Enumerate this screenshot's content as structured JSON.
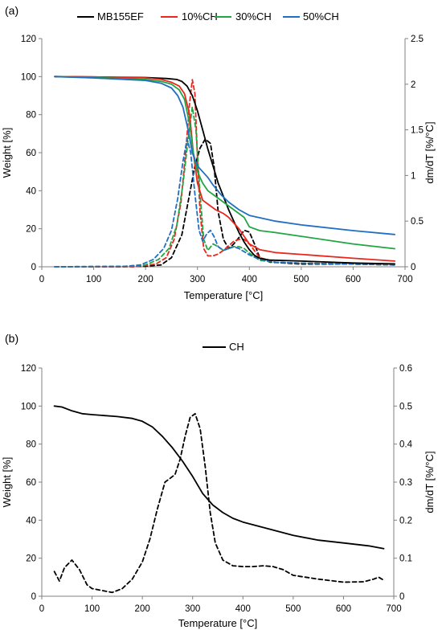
{
  "chart_data": [
    {
      "type": "line",
      "panel_label": "(a)",
      "xlabel": "Temperature [°C]",
      "ylabel": "Weight [%]",
      "y2label": "dm/dT [%/°C]",
      "xlim": [
        0,
        700
      ],
      "ylim": [
        0,
        120
      ],
      "y2lim": [
        0,
        2.5
      ],
      "xticks": [
        0,
        100,
        200,
        300,
        400,
        500,
        600,
        700
      ],
      "yticks": [
        0,
        20,
        40,
        60,
        80,
        100,
        120
      ],
      "y2ticks": [
        0,
        0.5,
        1,
        1.5,
        2,
        2.5
      ],
      "y2tick_labels": [
        "0",
        "0.5",
        "1",
        "1.5",
        "2",
        "2.5"
      ],
      "grid": false,
      "legend_position": "top",
      "series": [
        {
          "name": "MB155EF",
          "color": "#000000",
          "axis": "left",
          "style": "solid",
          "x": [
            25,
            100,
            200,
            240,
            260,
            270,
            280,
            290,
            300,
            310,
            320,
            330,
            340,
            350,
            360,
            370,
            380,
            390,
            400,
            410,
            420,
            440,
            500,
            600,
            680
          ],
          "y": [
            100,
            99.8,
            99.5,
            99,
            98.5,
            97.5,
            95,
            90,
            82,
            72,
            62,
            53,
            44,
            37,
            30,
            24,
            18,
            13,
            9,
            6,
            4.5,
            3.5,
            3,
            2,
            1.5
          ]
        },
        {
          "name": "MB155EF",
          "color": "#000000",
          "axis": "right",
          "style": "dashed",
          "x": [
            25,
            150,
            200,
            230,
            250,
            270,
            285,
            295,
            305,
            315,
            325,
            332,
            340,
            350,
            360,
            370,
            380,
            390,
            400,
            410,
            420,
            440,
            500,
            600,
            680
          ],
          "y": [
            0,
            0,
            0.005,
            0.02,
            0.1,
            0.35,
            0.8,
            1.1,
            1.3,
            1.4,
            1.35,
            1.1,
            0.6,
            0.3,
            0.2,
            0.25,
            0.32,
            0.4,
            0.38,
            0.25,
            0.1,
            0.05,
            0.03,
            0.03,
            0.02
          ]
        },
        {
          "name": "10%CH",
          "color": "#e8281e",
          "axis": "left",
          "style": "solid",
          "x": [
            25,
            100,
            200,
            230,
            250,
            265,
            275,
            285,
            292,
            300,
            310,
            320,
            335,
            350,
            360,
            380,
            400,
            420,
            450,
            500,
            600,
            680
          ],
          "y": [
            100,
            99.8,
            99.3,
            98.5,
            97,
            95,
            91,
            80,
            60,
            44,
            35,
            33,
            30,
            28,
            26,
            20,
            12,
            9,
            7.5,
            6.5,
            4.5,
            3
          ]
        },
        {
          "name": "10%CH",
          "color": "#e8281e",
          "axis": "right",
          "style": "dashed",
          "x": [
            25,
            180,
            220,
            240,
            255,
            268,
            278,
            285,
            290,
            295,
            300,
            305,
            312,
            320,
            330,
            340,
            350,
            360,
            370,
            380,
            390,
            400,
            420,
            450,
            500,
            600,
            680
          ],
          "y": [
            0,
            0,
            0.03,
            0.1,
            0.3,
            0.7,
            1.3,
            1.8,
            2.05,
            1.9,
            1.2,
            0.6,
            0.2,
            0.12,
            0.12,
            0.14,
            0.18,
            0.23,
            0.28,
            0.3,
            0.3,
            0.25,
            0.1,
            0.05,
            0.04,
            0.03,
            0.02
          ]
        },
        {
          "name": "30%CH",
          "color": "#22a544",
          "axis": "left",
          "style": "solid",
          "x": [
            25,
            100,
            200,
            230,
            250,
            265,
            275,
            285,
            292,
            300,
            310,
            320,
            335,
            350,
            370,
            390,
            400,
            420,
            450,
            500,
            600,
            680
          ],
          "y": [
            100,
            99.5,
            98.5,
            97.5,
            96,
            93,
            88,
            75,
            60,
            50,
            44,
            40,
            37,
            34,
            30,
            26,
            21,
            19,
            18,
            16,
            12,
            9.5
          ]
        },
        {
          "name": "30%CH",
          "color": "#22a544",
          "axis": "right",
          "style": "dashed",
          "x": [
            25,
            170,
            200,
            225,
            245,
            260,
            272,
            282,
            290,
            297,
            305,
            312,
            320,
            330,
            340,
            350,
            360,
            370,
            380,
            390,
            400,
            420,
            450,
            500,
            600,
            680
          ],
          "y": [
            0,
            0.005,
            0.02,
            0.08,
            0.2,
            0.45,
            0.9,
            1.4,
            1.75,
            1.5,
            0.8,
            0.3,
            0.18,
            0.25,
            0.22,
            0.18,
            0.2,
            0.22,
            0.22,
            0.2,
            0.15,
            0.07,
            0.05,
            0.04,
            0.03,
            0.02
          ]
        },
        {
          "name": "50%CH",
          "color": "#1f6fc2",
          "axis": "left",
          "style": "solid",
          "x": [
            25,
            100,
            200,
            230,
            250,
            262,
            272,
            282,
            290,
            300,
            310,
            320,
            330,
            345,
            360,
            380,
            400,
            450,
            500,
            600,
            680
          ],
          "y": [
            100,
            99.3,
            98,
            96.5,
            94,
            90,
            84,
            72,
            60,
            53,
            50,
            47,
            43,
            38,
            34,
            30,
            27,
            24,
            22,
            19,
            17
          ]
        },
        {
          "name": "50%CH",
          "color": "#1f6fc2",
          "axis": "right",
          "style": "dashed",
          "x": [
            25,
            160,
            190,
            215,
            235,
            250,
            262,
            272,
            280,
            287,
            295,
            303,
            310,
            318,
            325,
            332,
            340,
            350,
            360,
            370,
            380,
            400,
            420,
            450,
            500,
            600,
            680
          ],
          "y": [
            0,
            0.005,
            0.02,
            0.08,
            0.2,
            0.4,
            0.75,
            1.15,
            1.4,
            1.25,
            0.8,
            0.4,
            0.28,
            0.36,
            0.4,
            0.33,
            0.22,
            0.18,
            0.2,
            0.22,
            0.2,
            0.13,
            0.08,
            0.05,
            0.04,
            0.03,
            0.02
          ]
        }
      ]
    },
    {
      "type": "line",
      "panel_label": "(b)",
      "xlabel": "Temperature [°C]",
      "ylabel": "Weight [%]",
      "y2label": "dm/dT [%/°C]",
      "xlim": [
        0,
        700
      ],
      "ylim": [
        0,
        120
      ],
      "y2lim": [
        0,
        0.6
      ],
      "xticks": [
        0,
        100,
        200,
        300,
        400,
        500,
        600,
        700
      ],
      "yticks": [
        0,
        20,
        40,
        60,
        80,
        100,
        120
      ],
      "y2ticks": [
        0,
        0.1,
        0.2,
        0.3,
        0.4,
        0.5,
        0.6
      ],
      "y2tick_labels": [
        "0",
        "0.1",
        "0.2",
        "0.3",
        "0.4",
        "0.5",
        "0.6"
      ],
      "grid": false,
      "legend_position": "top",
      "series": [
        {
          "name": "CH",
          "color": "#000000",
          "axis": "left",
          "style": "solid",
          "x": [
            25,
            40,
            60,
            80,
            100,
            150,
            180,
            200,
            220,
            240,
            260,
            280,
            300,
            320,
            340,
            360,
            380,
            400,
            450,
            500,
            550,
            600,
            650,
            680
          ],
          "y": [
            100,
            99.5,
            97.5,
            96,
            95.5,
            94.5,
            93.5,
            92,
            89,
            84,
            78,
            71,
            63,
            54,
            48,
            44,
            41,
            39,
            35.5,
            32,
            29.5,
            28,
            26.5,
            25
          ]
        },
        {
          "name": "CH",
          "color": "#000000",
          "axis": "right",
          "style": "dashed",
          "x": [
            25,
            35,
            45,
            60,
            75,
            90,
            100,
            120,
            140,
            160,
            180,
            200,
            215,
            230,
            245,
            255,
            265,
            275,
            285,
            295,
            305,
            315,
            325,
            335,
            345,
            360,
            380,
            400,
            420,
            440,
            460,
            480,
            500,
            550,
            600,
            640,
            660,
            670,
            680
          ],
          "y": [
            0.065,
            0.04,
            0.075,
            0.095,
            0.07,
            0.03,
            0.02,
            0.015,
            0.01,
            0.02,
            0.045,
            0.09,
            0.15,
            0.23,
            0.3,
            0.31,
            0.32,
            0.36,
            0.42,
            0.47,
            0.48,
            0.44,
            0.34,
            0.22,
            0.14,
            0.095,
            0.08,
            0.078,
            0.078,
            0.08,
            0.078,
            0.07,
            0.055,
            0.045,
            0.037,
            0.038,
            0.045,
            0.05,
            0.042
          ]
        }
      ]
    }
  ]
}
